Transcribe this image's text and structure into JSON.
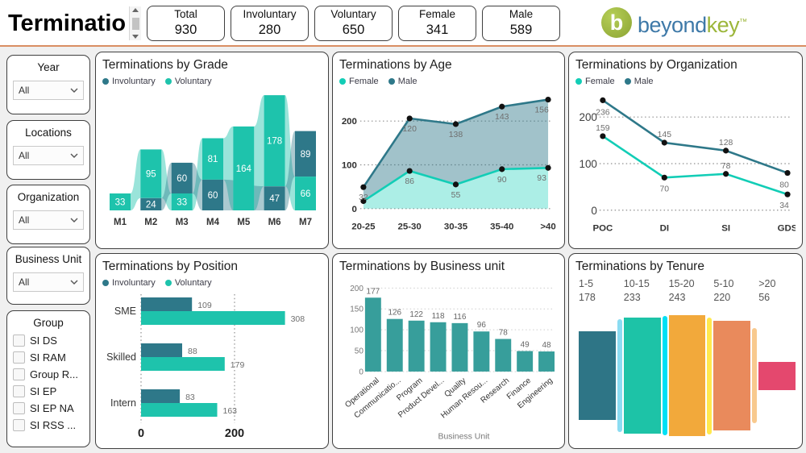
{
  "header": {
    "title": "Terminatio",
    "kpis": [
      {
        "label": "Total",
        "value": "930"
      },
      {
        "label": "Involuntary",
        "value": "280"
      },
      {
        "label": "Voluntary",
        "value": "650"
      },
      {
        "label": "Female",
        "value": "341"
      },
      {
        "label": "Male",
        "value": "589"
      }
    ],
    "logo": {
      "symbol": "b",
      "part1": "beyond",
      "part2": "key",
      "tm": "™"
    }
  },
  "sidebar": {
    "filters": [
      {
        "label": "Year",
        "value": "All"
      },
      {
        "label": "Locations",
        "value": "All"
      },
      {
        "label": "Organization",
        "value": "All"
      },
      {
        "label": "Business Unit",
        "value": "All"
      }
    ],
    "group": {
      "label": "Group",
      "options": [
        "SI DS",
        "SI RAM",
        "Group R...",
        "SI EP",
        "SI EP NA",
        "SI RSS ..."
      ]
    }
  },
  "colors": {
    "voluntary": "#1EC3AC",
    "involuntary": "#2E7889",
    "female": "#12CDB6",
    "male": "#2E7889",
    "bu_bar": "#379E9B",
    "divider": "#D98E63"
  },
  "chart_data": [
    {
      "type": "ribbon",
      "title": "Terminations by Grade",
      "categories": [
        "M1",
        "M2",
        "M3",
        "M4",
        "M5",
        "M6",
        "M7"
      ],
      "series": [
        {
          "name": "Involuntary",
          "color": "#2E7889",
          "values": [
            0,
            24,
            60,
            60,
            0,
            47,
            89
          ]
        },
        {
          "name": "Voluntary",
          "color": "#1EC3AC",
          "values": [
            33,
            95,
            33,
            81,
            164,
            178,
            66
          ]
        }
      ],
      "legend_position": "top"
    },
    {
      "type": "area-stacked",
      "title": "Terminations by Age",
      "categories": [
        "20-25",
        "25-30",
        "30-35",
        "35-40",
        ">40"
      ],
      "series": [
        {
          "name": "Female",
          "color": "#12CDB6",
          "values": [
            17,
            86,
            55,
            90,
            93
          ],
          "labels": [
            "",
            "86",
            "55",
            "90",
            "93"
          ]
        },
        {
          "name": "Male",
          "color": "#2E7889",
          "values": [
            32,
            120,
            138,
            143,
            156
          ],
          "labels": [
            "32",
            "120",
            "138",
            "143",
            "156"
          ]
        }
      ],
      "yticks": [
        0,
        100,
        200
      ],
      "grid": "dotted"
    },
    {
      "type": "line",
      "title": "Terminations by Organization",
      "categories": [
        "POC",
        "DI",
        "SI",
        "GDS"
      ],
      "series": [
        {
          "name": "Female",
          "color": "#12CDB6",
          "values": [
            159,
            70,
            78,
            34
          ]
        },
        {
          "name": "Male",
          "color": "#2E7889",
          "values": [
            236,
            145,
            128,
            80
          ]
        }
      ],
      "yticks": [
        0,
        100,
        200
      ],
      "grid": "dotted"
    },
    {
      "type": "barh",
      "title": "Terminations by Position",
      "categories": [
        "SME",
        "Skilled",
        "Intern"
      ],
      "series": [
        {
          "name": "Involuntary",
          "color": "#2E7889",
          "values": [
            109,
            88,
            83
          ]
        },
        {
          "name": "Voluntary",
          "color": "#1EC3AC",
          "values": [
            308,
            179,
            163
          ]
        }
      ],
      "xticks": [
        0,
        200
      ],
      "grid": "dotted"
    },
    {
      "type": "bar",
      "title": "Terminations by Business unit",
      "categories": [
        "Operational",
        "Communicatio...",
        "Program",
        "Product Devel...",
        "Quality",
        "Human Resou...",
        "Research",
        "Finance",
        "Engineering"
      ],
      "values": [
        177,
        126,
        122,
        118,
        116,
        96,
        78,
        49,
        48
      ],
      "color": "#379E9B",
      "yticks": [
        0,
        50,
        100,
        150,
        200
      ],
      "xlabel": "Business Unit"
    },
    {
      "type": "centered-bar",
      "title": "Terminations by Tenure",
      "categories": [
        "1-5",
        "10-15",
        "15-20",
        "5-10",
        ">20"
      ],
      "values": [
        178,
        233,
        243,
        220,
        56
      ],
      "colors": [
        "#2E7586",
        "#1DC3A7",
        "#F2A93B",
        "#E98A5C",
        "#E4486E"
      ],
      "strip_colors": [
        "#8BDCF2",
        "#00E0F5",
        "#FFE94D",
        "#F8C98E"
      ]
    }
  ]
}
